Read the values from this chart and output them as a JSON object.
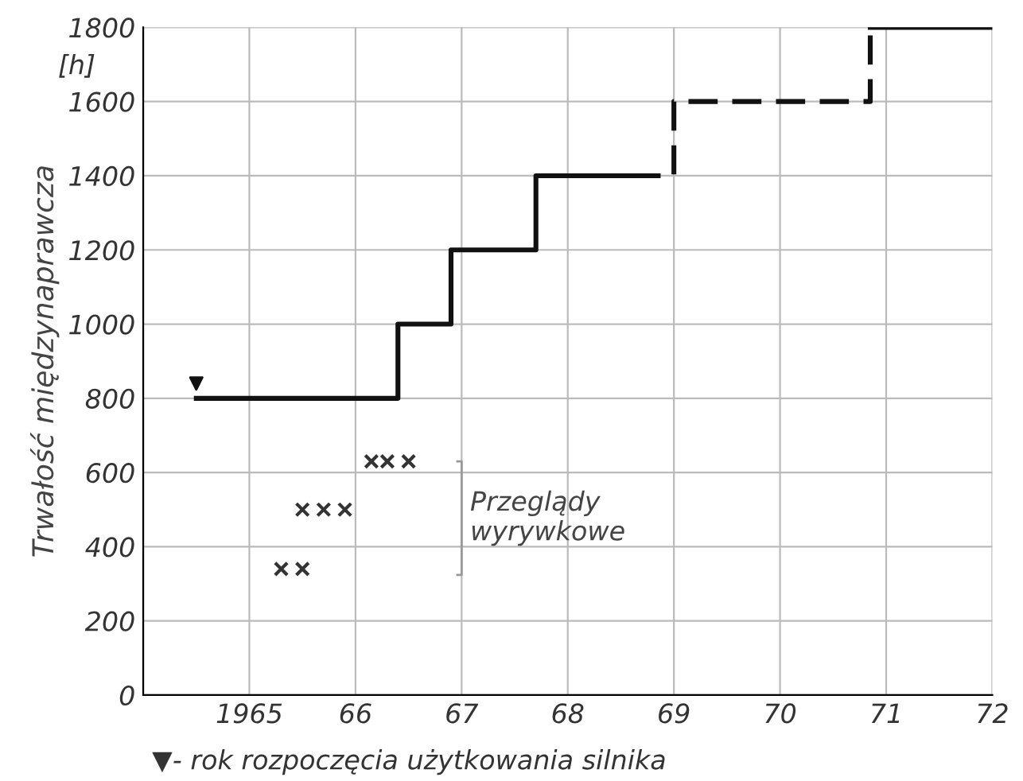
{
  "chart_data": {
    "type": "step",
    "ylabel": "Trwałość międzynaprawcza",
    "xlim": [
      1964,
      1972
    ],
    "ylim": [
      0,
      1800
    ],
    "xticks": [
      {
        "value": 1965,
        "label": "1965"
      },
      {
        "value": 1966,
        "label": "66"
      },
      {
        "value": 1967,
        "label": "67"
      },
      {
        "value": 1968,
        "label": "68"
      },
      {
        "value": 1969,
        "label": "69"
      },
      {
        "value": 1970,
        "label": "70"
      },
      {
        "value": 1971,
        "label": "71"
      },
      {
        "value": 1972,
        "label": "72"
      }
    ],
    "yticks": [
      0,
      200,
      400,
      600,
      800,
      1000,
      1200,
      1400,
      1600,
      1800
    ],
    "grid": true,
    "series": [
      {
        "color": "#111111",
        "line_style": "solid",
        "x": [
          1964.5,
          1966.4,
          1966.9,
          1967.7,
          1968.6
        ],
        "values": [
          800,
          1000,
          1200,
          1400,
          1400
        ]
      },
      {
        "color": "#111111",
        "line_style": "dashed",
        "x": [
          1968.6,
          1969.0,
          1970.85
        ],
        "values": [
          1400,
          1600,
          1800
        ]
      },
      {
        "color": "#111111",
        "line_style": "solid",
        "x": [
          1970.85,
          1972
        ],
        "values": [
          1800,
          1800
        ]
      },
      {
        "type": "scatter",
        "color": "#111111",
        "marker": "triangle",
        "x": [
          1964.5
        ],
        "values": [
          840
        ]
      },
      {
        "type": "scatter",
        "color": "#333333",
        "marker": "cross",
        "x": [
          1965.3,
          1965.5,
          1965.5,
          1965.7,
          1965.9,
          1966.15,
          1966.3,
          1966.5
        ],
        "values": [
          340,
          340,
          500,
          500,
          500,
          630,
          630,
          630
        ]
      }
    ],
    "annotations": [
      "[h]",
      "Przeglądy\nwyrywkowe",
      "▼- rok rozpoczęcia użytkowania silnika"
    ]
  }
}
